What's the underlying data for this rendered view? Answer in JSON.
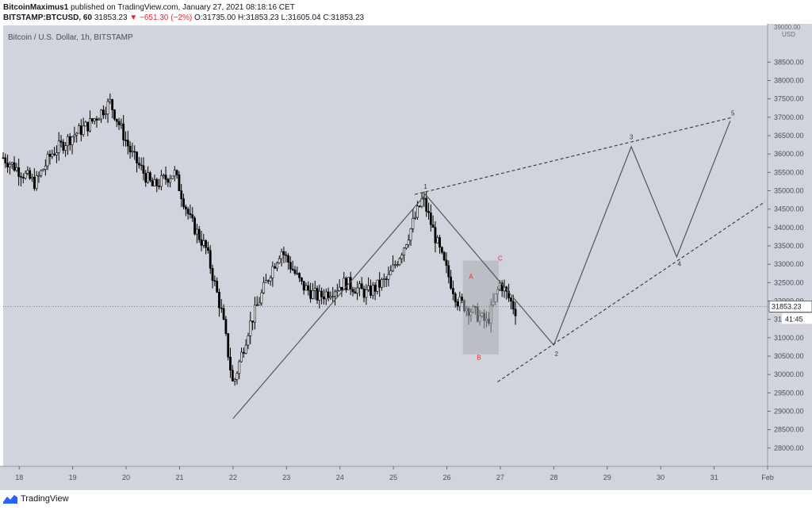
{
  "header": {
    "publisher": "BitcoinMaximus1",
    "published_text": "published on TradingView.com, January 27, 2021 08:18:16 CET",
    "symbol": "BITSTAMP:BTCUSD, 60",
    "price": "31853.23",
    "change": "−651.30 (−2%)",
    "open": "O:31735.00",
    "high": "H:31853.23",
    "low": "L:31605.04",
    "close": "C:31853.23"
  },
  "footer": {
    "brand": "TradingView"
  },
  "colors": {
    "plot_bg": "#d1d4dc",
    "candle": "#000000",
    "pattern_line": "#555555",
    "label_red": "#e8272f",
    "box": "#a9abb2"
  },
  "chart_data": {
    "type": "candlestick",
    "title": "Bitcoin / U.S. Dollar, 1h, BITSTAMP",
    "y_unit": "USD",
    "y_top_label": "39000.00",
    "ylim": [
      27500,
      39500
    ],
    "xlim": [
      17.7,
      32.0
    ],
    "y_ticks": [
      "38500.00",
      "38000.00",
      "37500.00",
      "37000.00",
      "36500.00",
      "36000.00",
      "35500.00",
      "35000.00",
      "34500.00",
      "34000.00",
      "33500.00",
      "33000.00",
      "32500.00",
      "32000.00",
      "31500.00",
      "31000.00",
      "30500.00",
      "30000.00",
      "29500.00",
      "29000.00",
      "28500.00",
      "28000.00"
    ],
    "x_ticks": [
      {
        "label": "18",
        "x": 18
      },
      {
        "label": "19",
        "x": 19
      },
      {
        "label": "20",
        "x": 20
      },
      {
        "label": "21",
        "x": 21
      },
      {
        "label": "22",
        "x": 22
      },
      {
        "label": "23",
        "x": 23
      },
      {
        "label": "24",
        "x": 24
      },
      {
        "label": "25",
        "x": 25
      },
      {
        "label": "26",
        "x": 26
      },
      {
        "label": "27",
        "x": 27
      },
      {
        "label": "28",
        "x": 28
      },
      {
        "label": "29",
        "x": 29
      },
      {
        "label": "30",
        "x": 30
      },
      {
        "label": "31",
        "x": 31
      },
      {
        "label": "Feb",
        "x": 32
      }
    ],
    "price_tag": "31853.23",
    "countdown": "41:45",
    "anchors": [
      {
        "x": 17.7,
        "y": 35900
      },
      {
        "x": 18.3,
        "y": 35200
      },
      {
        "x": 18.6,
        "y": 36000
      },
      {
        "x": 19.0,
        "y": 36500
      },
      {
        "x": 19.3,
        "y": 36800
      },
      {
        "x": 19.7,
        "y": 37400
      },
      {
        "x": 20.1,
        "y": 36000
      },
      {
        "x": 20.5,
        "y": 35100
      },
      {
        "x": 20.9,
        "y": 35500
      },
      {
        "x": 21.2,
        "y": 34200
      },
      {
        "x": 21.5,
        "y": 33400
      },
      {
        "x": 21.8,
        "y": 31600
      },
      {
        "x": 22.0,
        "y": 29700
      },
      {
        "x": 22.3,
        "y": 31300
      },
      {
        "x": 22.7,
        "y": 32800
      },
      {
        "x": 22.9,
        "y": 33400
      },
      {
        "x": 23.3,
        "y": 32400
      },
      {
        "x": 23.6,
        "y": 32100
      },
      {
        "x": 24.1,
        "y": 32500
      },
      {
        "x": 24.5,
        "y": 32200
      },
      {
        "x": 24.9,
        "y": 32600
      },
      {
        "x": 25.2,
        "y": 33500
      },
      {
        "x": 25.55,
        "y": 34800
      },
      {
        "x": 25.9,
        "y": 33200
      },
      {
        "x": 26.2,
        "y": 32000
      },
      {
        "x": 26.5,
        "y": 31700
      },
      {
        "x": 26.75,
        "y": 31400
      },
      {
        "x": 27.0,
        "y": 32500
      },
      {
        "x": 27.3,
        "y": 31700
      }
    ],
    "annotations": {
      "wave_path": [
        {
          "x": 22.0,
          "y": 28800
        },
        {
          "x": 25.6,
          "y": 34900
        },
        {
          "x": 28.0,
          "y": 30800
        },
        {
          "x": 29.45,
          "y": 36200
        },
        {
          "x": 30.3,
          "y": 33200
        },
        {
          "x": 31.3,
          "y": 36900
        }
      ],
      "upper_trend": [
        {
          "x": 25.4,
          "y": 34900
        },
        {
          "x": 31.35,
          "y": 37000
        }
      ],
      "lower_trend": [
        {
          "x": 26.95,
          "y": 29800
        },
        {
          "x": 31.95,
          "y": 34700
        }
      ],
      "labels": [
        {
          "text": "1",
          "x": 25.6,
          "y": 35050,
          "color": "#333333"
        },
        {
          "text": "2",
          "x": 28.05,
          "y": 30500,
          "color": "#333333"
        },
        {
          "text": "3",
          "x": 29.45,
          "y": 36400,
          "color": "#333333"
        },
        {
          "text": "4",
          "x": 30.35,
          "y": 32950,
          "color": "#333333"
        },
        {
          "text": "5",
          "x": 31.35,
          "y": 37050,
          "color": "#333333"
        },
        {
          "text": "A",
          "x": 26.45,
          "y": 32600,
          "color": "#e8272f"
        },
        {
          "text": "B",
          "x": 26.6,
          "y": 30400,
          "color": "#e8272f"
        },
        {
          "text": "C",
          "x": 27.0,
          "y": 33100,
          "color": "#e8272f"
        }
      ],
      "box": {
        "x0": 26.3,
        "x1": 26.97,
        "y0": 30550,
        "y1": 33100
      }
    }
  }
}
